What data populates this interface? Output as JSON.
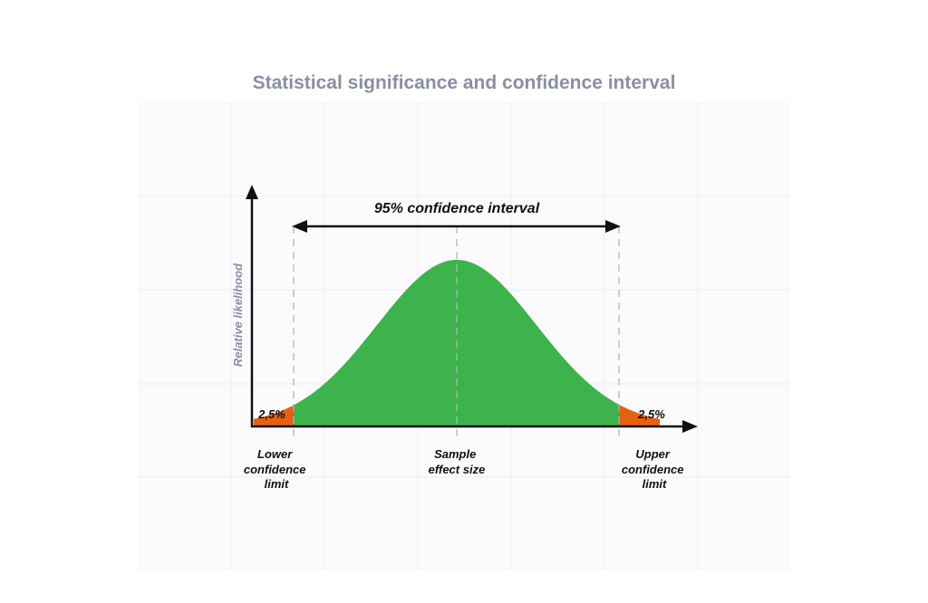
{
  "title": "Statistical significance and confidence interval",
  "ylabel": "Relative likelihood",
  "interval_label": "95% confidence interval",
  "tail_left_label": "2,5%",
  "tail_right_label": "2,5%",
  "x_labels": {
    "lower": [
      "Lower",
      "confidence",
      "limit"
    ],
    "center": [
      "Sample",
      "effect size"
    ],
    "upper": [
      "Upper",
      "confidence",
      "limit"
    ]
  },
  "colors": {
    "title": "#8a8fa3",
    "body_fill": "#3cb44b",
    "tail_fill": "#e8600f",
    "axis": "#111111",
    "grid": "#e9eaf0",
    "dashed": "#b5b5b5"
  }
}
